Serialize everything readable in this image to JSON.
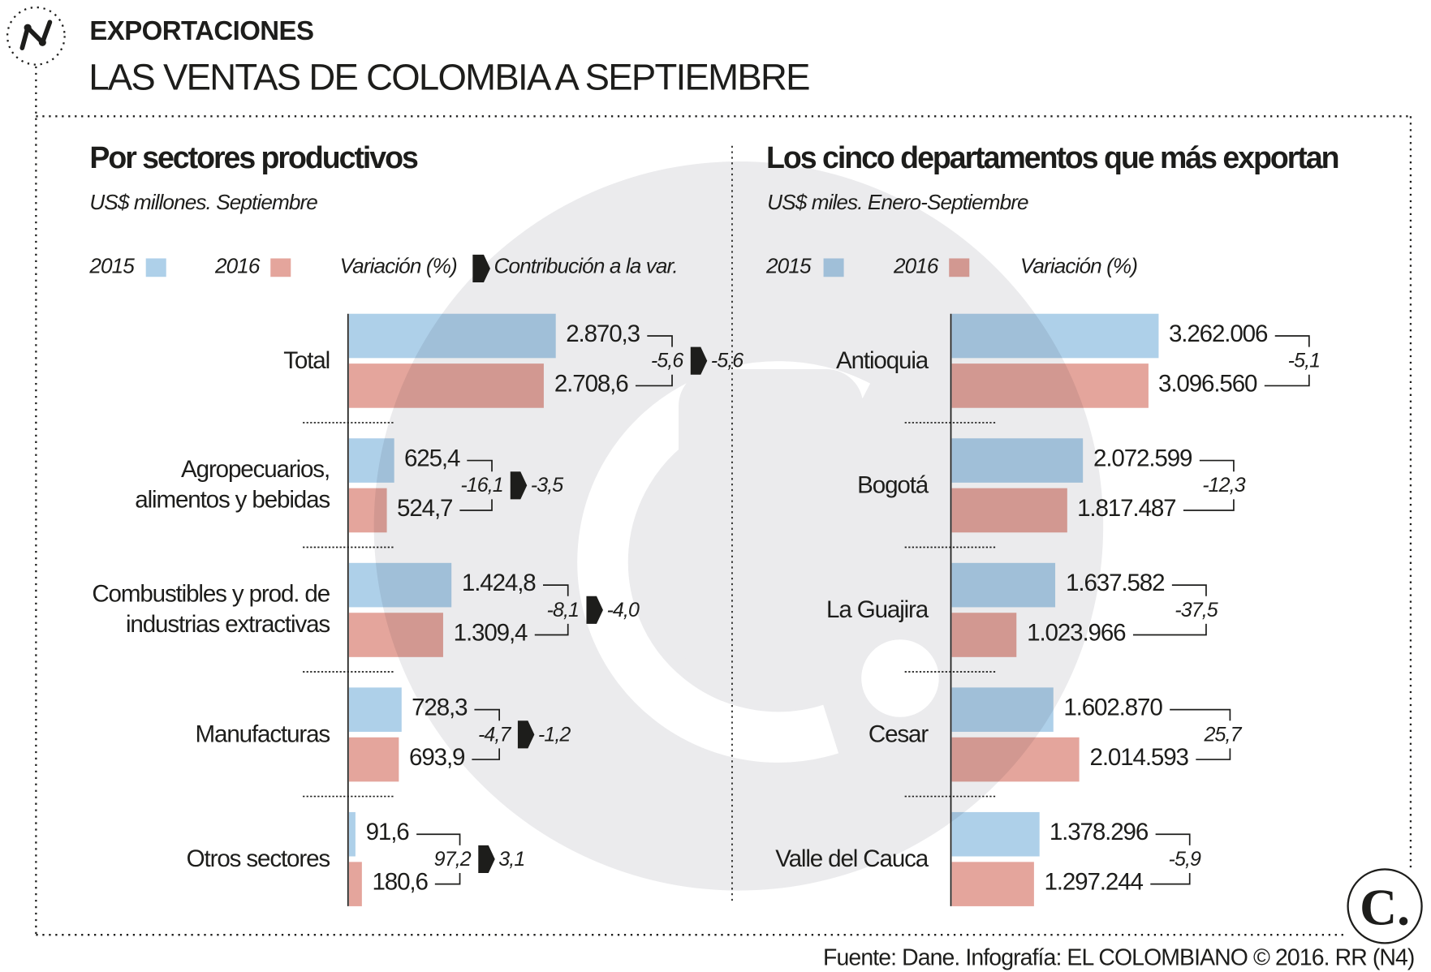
{
  "header": {
    "kicker": "EXPORTACIONES",
    "title": "LAS VENTAS DE COLOMBIA A SEPTIEMBRE"
  },
  "footer": "Fuente: Dane. Infografía: EL COLOMBIANO © 2016. RR (N4)",
  "colors": {
    "y2015": "#aed0e9",
    "y2016": "#e4a59c",
    "watermark": "#ebebed",
    "text": "#1d1d1b"
  },
  "icons": {
    "section_logo": "trend-line-icon",
    "brand_logo": "el-colombiano-c-logo",
    "arrow": "right-arrow-icon"
  },
  "chart_data": [
    {
      "type": "bar",
      "orientation": "horizontal",
      "title": "Por sectores productivos",
      "subtitle": "US$ millones. Septiembre",
      "legend": {
        "y2015": "2015",
        "y2016": "2016",
        "variation": "Variación (%)",
        "contribution": "Contribución a la var."
      },
      "categories": [
        "Total",
        "Agropecuarios,\nalimentos y bebidas",
        "Combustibles y prod. de\nindustrias extractivas",
        "Manufacturas",
        "Otros sectores"
      ],
      "series": [
        {
          "name": "2015",
          "values": [
            2870.3,
            625.4,
            1424.8,
            728.3,
            91.6
          ],
          "labels": [
            "2.870,3",
            "625,4",
            "1.424,8",
            "728,3",
            "91,6"
          ]
        },
        {
          "name": "2016",
          "values": [
            2708.6,
            524.7,
            1309.4,
            693.9,
            180.6
          ],
          "labels": [
            "2.708,6",
            "524,7",
            "1.309,4",
            "693,9",
            "180,6"
          ]
        }
      ],
      "variation": [
        "-5,6",
        "-16,1",
        "-8,1",
        "-4,7",
        "97,2"
      ],
      "contribution": [
        "-5,6",
        "-3,5",
        "-4,0",
        "-1,2",
        "3,1"
      ]
    },
    {
      "type": "bar",
      "orientation": "horizontal",
      "title": "Los cinco departamentos que más exportan",
      "subtitle": "US$ miles. Enero-Septiembre",
      "legend": {
        "y2015": "2015",
        "y2016": "2016",
        "variation": "Variación (%)"
      },
      "categories": [
        "Antioquia",
        "Bogotá",
        "La Guajira",
        "Cesar",
        "Valle del Cauca"
      ],
      "series": [
        {
          "name": "2015",
          "values": [
            3262006,
            2072599,
            1637582,
            1602870,
            1378296
          ],
          "labels": [
            "3.262.006",
            "2.072.599",
            "1.637.582",
            "1.602.870",
            "1.378.296"
          ]
        },
        {
          "name": "2016",
          "values": [
            3096560,
            1817487,
            1023966,
            2014593,
            1297244
          ],
          "labels": [
            "3.096.560",
            "1.817.487",
            "1.023.966",
            "2.014.593",
            "1.297.244"
          ]
        }
      ],
      "variation": [
        "-5,1",
        "-12,3",
        "-37,5",
        "25,7",
        "-5,9"
      ]
    }
  ]
}
